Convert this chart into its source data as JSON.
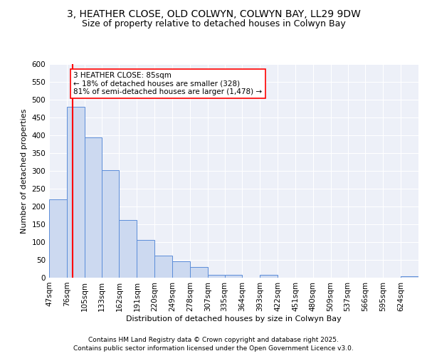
{
  "title_line1": "3, HEATHER CLOSE, OLD COLWYN, COLWYN BAY, LL29 9DW",
  "title_line2": "Size of property relative to detached houses in Colwyn Bay",
  "xlabel": "Distribution of detached houses by size in Colwyn Bay",
  "ylabel": "Number of detached properties",
  "bin_labels": [
    "47sqm",
    "76sqm",
    "105sqm",
    "133sqm",
    "162sqm",
    "191sqm",
    "220sqm",
    "249sqm",
    "278sqm",
    "307sqm",
    "335sqm",
    "364sqm",
    "393sqm",
    "422sqm",
    "451sqm",
    "480sqm",
    "509sqm",
    "537sqm",
    "566sqm",
    "595sqm",
    "624sqm"
  ],
  "bin_edges": [
    47,
    76,
    105,
    133,
    162,
    191,
    220,
    249,
    278,
    307,
    335,
    364,
    393,
    422,
    451,
    480,
    509,
    537,
    566,
    595,
    624
  ],
  "bar_heights": [
    220,
    480,
    395,
    302,
    162,
    107,
    63,
    46,
    31,
    8,
    8,
    0,
    8,
    0,
    0,
    0,
    0,
    0,
    0,
    0,
    5
  ],
  "bar_color": "#ccd9f0",
  "bar_edge_color": "#5b8dd9",
  "red_line_x": 85,
  "annotation_title": "3 HEATHER CLOSE: 85sqm",
  "annotation_line1": "← 18% of detached houses are smaller (328)",
  "annotation_line2": "81% of semi-detached houses are larger (1,478) →",
  "ylim": [
    0,
    600
  ],
  "yticks": [
    0,
    50,
    100,
    150,
    200,
    250,
    300,
    350,
    400,
    450,
    500,
    550,
    600
  ],
  "background_color": "#edf0f8",
  "footer_line1": "Contains HM Land Registry data © Crown copyright and database right 2025.",
  "footer_line2": "Contains public sector information licensed under the Open Government Licence v3.0.",
  "title_fontsize": 10,
  "subtitle_fontsize": 9,
  "axis_label_fontsize": 8,
  "tick_fontsize": 7.5,
  "annotation_fontsize": 7.5
}
